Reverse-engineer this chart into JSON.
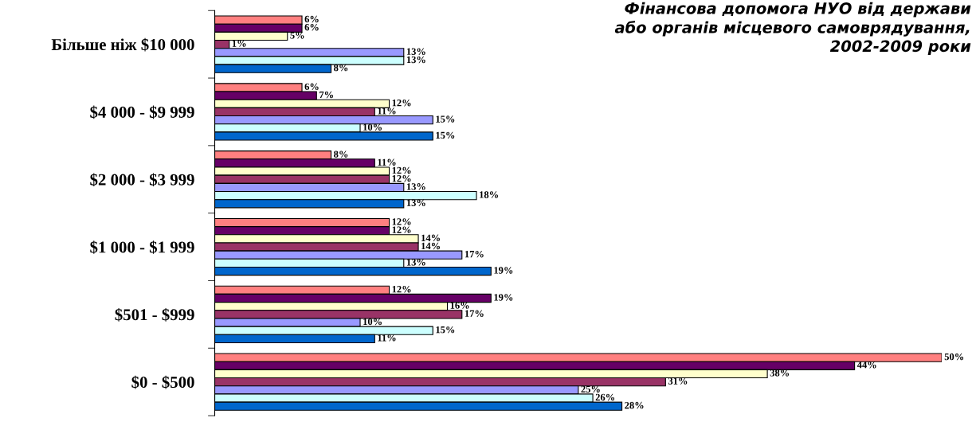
{
  "chart_data": {
    "type": "bar",
    "orientation": "horizontal",
    "title": "Фінансова допомога НУО від держави\nабо органів місцевого самоврядування,\n2002-2009 роки",
    "categories": [
      "Більше ніж $10 000",
      "$4 000 - $9 999",
      "$2 000 - $3 999",
      "$1 000 - $1 999",
      "$501 - $999",
      "$0 - $500"
    ],
    "xlim": [
      0,
      50
    ],
    "tick_labels": "y",
    "grid": false,
    "series": [
      {
        "color": "#ff8080",
        "values": [
          6,
          6,
          8,
          12,
          12,
          50
        ],
        "value_labels": [
          "6%",
          "6%",
          "8%",
          "12%",
          "12%",
          "50%"
        ]
      },
      {
        "color": "#660066",
        "values": [
          6,
          7,
          11,
          12,
          19,
          44
        ],
        "value_labels": [
          "6%",
          "7%",
          "11%",
          "12%",
          "19%",
          "44%"
        ]
      },
      {
        "color": "#ffffcc",
        "values": [
          5,
          12,
          12,
          14,
          16,
          38
        ],
        "value_labels": [
          "5%",
          "12%",
          "12%",
          "14%",
          "16%",
          "38%"
        ]
      },
      {
        "color": "#993366",
        "values": [
          1,
          11,
          12,
          14,
          17,
          31
        ],
        "value_labels": [
          "1%",
          "11%",
          "12%",
          "14%",
          "17%",
          "31%"
        ]
      },
      {
        "color": "#9999ff",
        "values": [
          13,
          15,
          13,
          17,
          10,
          25
        ],
        "value_labels": [
          "13%",
          "15%",
          "13%",
          "17%",
          "10%",
          "25%"
        ]
      },
      {
        "color": "#ccffff",
        "values": [
          13,
          10,
          18,
          13,
          15,
          26
        ],
        "value_labels": [
          "13%",
          "10%",
          "18%",
          "13%",
          "15%",
          "26%"
        ]
      },
      {
        "color": "#0066cc",
        "values": [
          8,
          15,
          13,
          19,
          11,
          28
        ],
        "value_labels": [
          "8%",
          "15%",
          "13%",
          "19%",
          "11%",
          "28%"
        ]
      }
    ]
  }
}
